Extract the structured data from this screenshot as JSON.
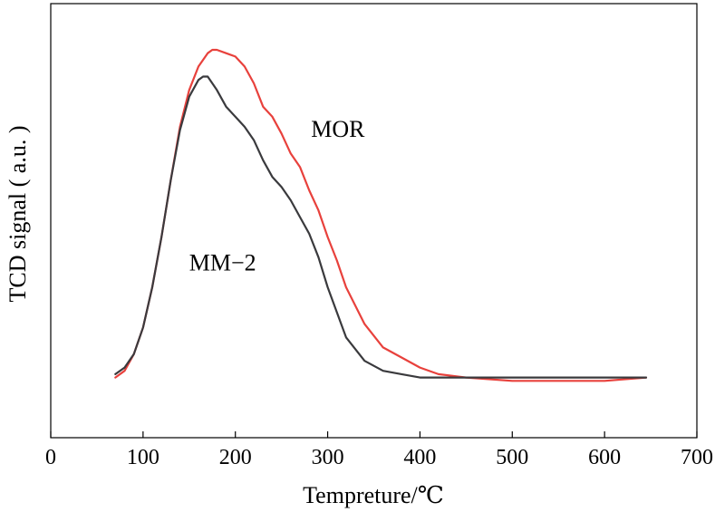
{
  "chart_data": {
    "type": "line",
    "xlabel": "Tempreture/℃",
    "ylabel": "TCD signal ( a.u. )",
    "xlim": [
      0,
      700
    ],
    "ylim": [
      0,
      1
    ],
    "xticks": [
      "0",
      "100",
      "200",
      "300",
      "400",
      "500",
      "600",
      "700"
    ],
    "yticks": [],
    "grid": false,
    "series": [
      {
        "name": "MOR",
        "color": "#e8413c",
        "x": [
          70,
          80,
          90,
          100,
          110,
          120,
          130,
          140,
          150,
          160,
          170,
          175,
          180,
          190,
          200,
          210,
          220,
          230,
          240,
          250,
          260,
          270,
          280,
          290,
          300,
          310,
          320,
          340,
          360,
          380,
          400,
          420,
          450,
          500,
          550,
          600,
          645
        ],
        "y": [
          0.02,
          0.04,
          0.09,
          0.17,
          0.29,
          0.44,
          0.61,
          0.77,
          0.88,
          0.95,
          0.99,
          1.0,
          1.0,
          0.99,
          0.98,
          0.95,
          0.9,
          0.83,
          0.8,
          0.75,
          0.69,
          0.65,
          0.58,
          0.52,
          0.44,
          0.37,
          0.29,
          0.18,
          0.11,
          0.08,
          0.05,
          0.03,
          0.02,
          0.01,
          0.01,
          0.01,
          0.02
        ]
      },
      {
        "name": "MM-2",
        "color": "#3a3a3d",
        "x": [
          70,
          80,
          90,
          100,
          110,
          120,
          130,
          140,
          150,
          160,
          165,
          170,
          180,
          190,
          200,
          210,
          220,
          230,
          240,
          250,
          260,
          270,
          280,
          290,
          300,
          320,
          340,
          360,
          380,
          400,
          450,
          500,
          550,
          600,
          645
        ],
        "y": [
          0.03,
          0.05,
          0.09,
          0.17,
          0.29,
          0.44,
          0.61,
          0.76,
          0.86,
          0.91,
          0.92,
          0.92,
          0.88,
          0.83,
          0.8,
          0.77,
          0.73,
          0.67,
          0.62,
          0.59,
          0.55,
          0.5,
          0.45,
          0.38,
          0.29,
          0.14,
          0.07,
          0.04,
          0.03,
          0.02,
          0.02,
          0.02,
          0.02,
          0.02,
          0.02
        ]
      }
    ],
    "annotations": [
      {
        "text": "MOR",
        "x": 282,
        "y": 0.74
      },
      {
        "text": "MM−2",
        "x": 150,
        "y": 0.34
      }
    ]
  }
}
